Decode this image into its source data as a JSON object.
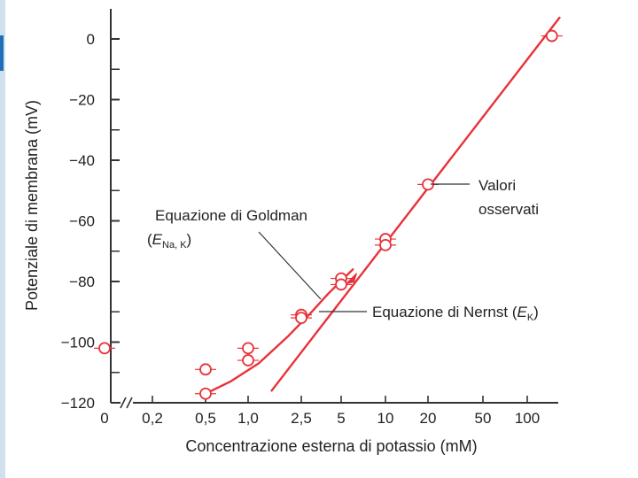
{
  "chart_data": {
    "type": "line",
    "title": "",
    "xlabel": "Concentrazione esterna di potassio (mM)",
    "ylabel": "Potenziale di membrana (mV)",
    "x_scale": "log",
    "x_ticks": [
      {
        "label": "0",
        "v": null
      },
      {
        "label": "0,2",
        "v": 0.2
      },
      {
        "label": "0,5",
        "v": 0.5
      },
      {
        "label": "1,0",
        "v": 1.0
      },
      {
        "label": "2,5",
        "v": 2.5
      },
      {
        "label": "5",
        "v": 5
      },
      {
        "label": "10",
        "v": 10
      },
      {
        "label": "20",
        "v": 20
      },
      {
        "label": "50",
        "v": 50
      },
      {
        "label": "100",
        "v": 100
      }
    ],
    "y_ticks": [
      0,
      -20,
      -40,
      -60,
      -80,
      -100,
      -120
    ],
    "y_tick_labels": [
      "0",
      "−20",
      "−40",
      "−60",
      "−80",
      "−100",
      "−120"
    ],
    "ylim": [
      -120,
      10
    ],
    "colors": {
      "data": "#e8323a",
      "text": "#222222",
      "axis": "#333333"
    },
    "series": [
      {
        "name": "Valori osservati",
        "kind": "points",
        "points": [
          {
            "x": 0,
            "y": -102
          },
          {
            "x": 0.5,
            "y": -109
          },
          {
            "x": 0.5,
            "y": -117
          },
          {
            "x": 1.0,
            "y": -102
          },
          {
            "x": 1.0,
            "y": -106
          },
          {
            "x": 2.5,
            "y": -91
          },
          {
            "x": 2.5,
            "y": -92
          },
          {
            "x": 5,
            "y": -79
          },
          {
            "x": 5,
            "y": -81
          },
          {
            "x": 10,
            "y": -66
          },
          {
            "x": 10,
            "y": -68
          },
          {
            "x": 20,
            "y": -48
          },
          {
            "x": 150,
            "y": 1
          }
        ]
      },
      {
        "name": "Equazione di Goldman",
        "kind": "curve",
        "points": [
          {
            "x": 0.5,
            "y": -117
          },
          {
            "x": 0.75,
            "y": -113
          },
          {
            "x": 1.2,
            "y": -107
          },
          {
            "x": 2.0,
            "y": -98
          },
          {
            "x": 3.0,
            "y": -90
          },
          {
            "x": 4.0,
            "y": -84
          },
          {
            "x": 6.0,
            "y": -76
          }
        ]
      },
      {
        "name": "Equazione di Nernst",
        "kind": "line",
        "points": [
          {
            "x": 1.5,
            "y": -116
          },
          {
            "x": 170,
            "y": 7
          }
        ]
      }
    ],
    "annotations": [
      {
        "id": "observed",
        "lines": [
          "Valori",
          "osservati"
        ]
      },
      {
        "id": "goldman",
        "line1": "Equazione di Goldman",
        "paren_open": "(",
        "E": "E",
        "sub": "Na, K",
        "paren_close": ")"
      },
      {
        "id": "nernst",
        "text": "Equazione di Nernst (",
        "E": "E",
        "sub": "K",
        "paren_close": ")"
      }
    ]
  }
}
